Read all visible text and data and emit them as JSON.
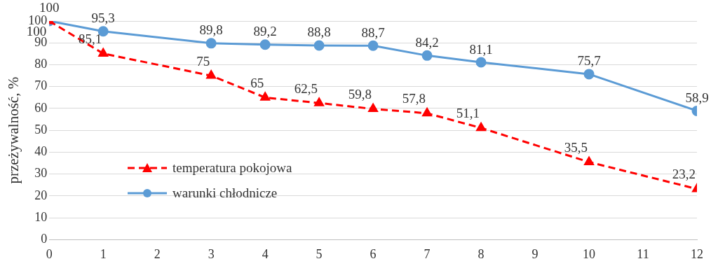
{
  "chart_data": {
    "type": "line",
    "ylabel": "przeżywalność, %",
    "xlim": [
      0,
      12
    ],
    "xticks": [
      0,
      1,
      2,
      3,
      4,
      5,
      6,
      7,
      8,
      9,
      10,
      11,
      12
    ],
    "ylim": [
      0,
      100
    ],
    "yticks": [
      0,
      10,
      20,
      30,
      40,
      50,
      60,
      70,
      80,
      90,
      100
    ],
    "grid": "y",
    "legend": "center left",
    "series": [
      {
        "name": "temperatura pokojowa",
        "color": "#ff0000",
        "marker": "triangle",
        "line_style": "dashed",
        "x": [
          0,
          1,
          3,
          4,
          5,
          6,
          7,
          8,
          10,
          12
        ],
        "values": [
          100,
          85.1,
          75,
          65,
          62.5,
          59.8,
          57.8,
          51.1,
          35.5,
          23.2
        ],
        "value_labels": [
          "100",
          "85,1",
          "75",
          "65",
          "62,5",
          "59,8",
          "57,8",
          "51,1",
          "35,5",
          "23,2"
        ]
      },
      {
        "name": "warunki chłodnicze",
        "color": "#5b9bd5",
        "marker": "circle",
        "line_style": "solid",
        "x": [
          0,
          1,
          3,
          4,
          5,
          6,
          7,
          8,
          10,
          12
        ],
        "values": [
          100,
          95.3,
          89.8,
          89.2,
          88.8,
          88.7,
          84.2,
          81.1,
          75.7,
          58.9
        ],
        "value_labels": [
          "100",
          "95,3",
          "89,8",
          "89,2",
          "88,8",
          "88,7",
          "84,2",
          "81,1",
          "75,7",
          "58,9"
        ]
      }
    ]
  }
}
